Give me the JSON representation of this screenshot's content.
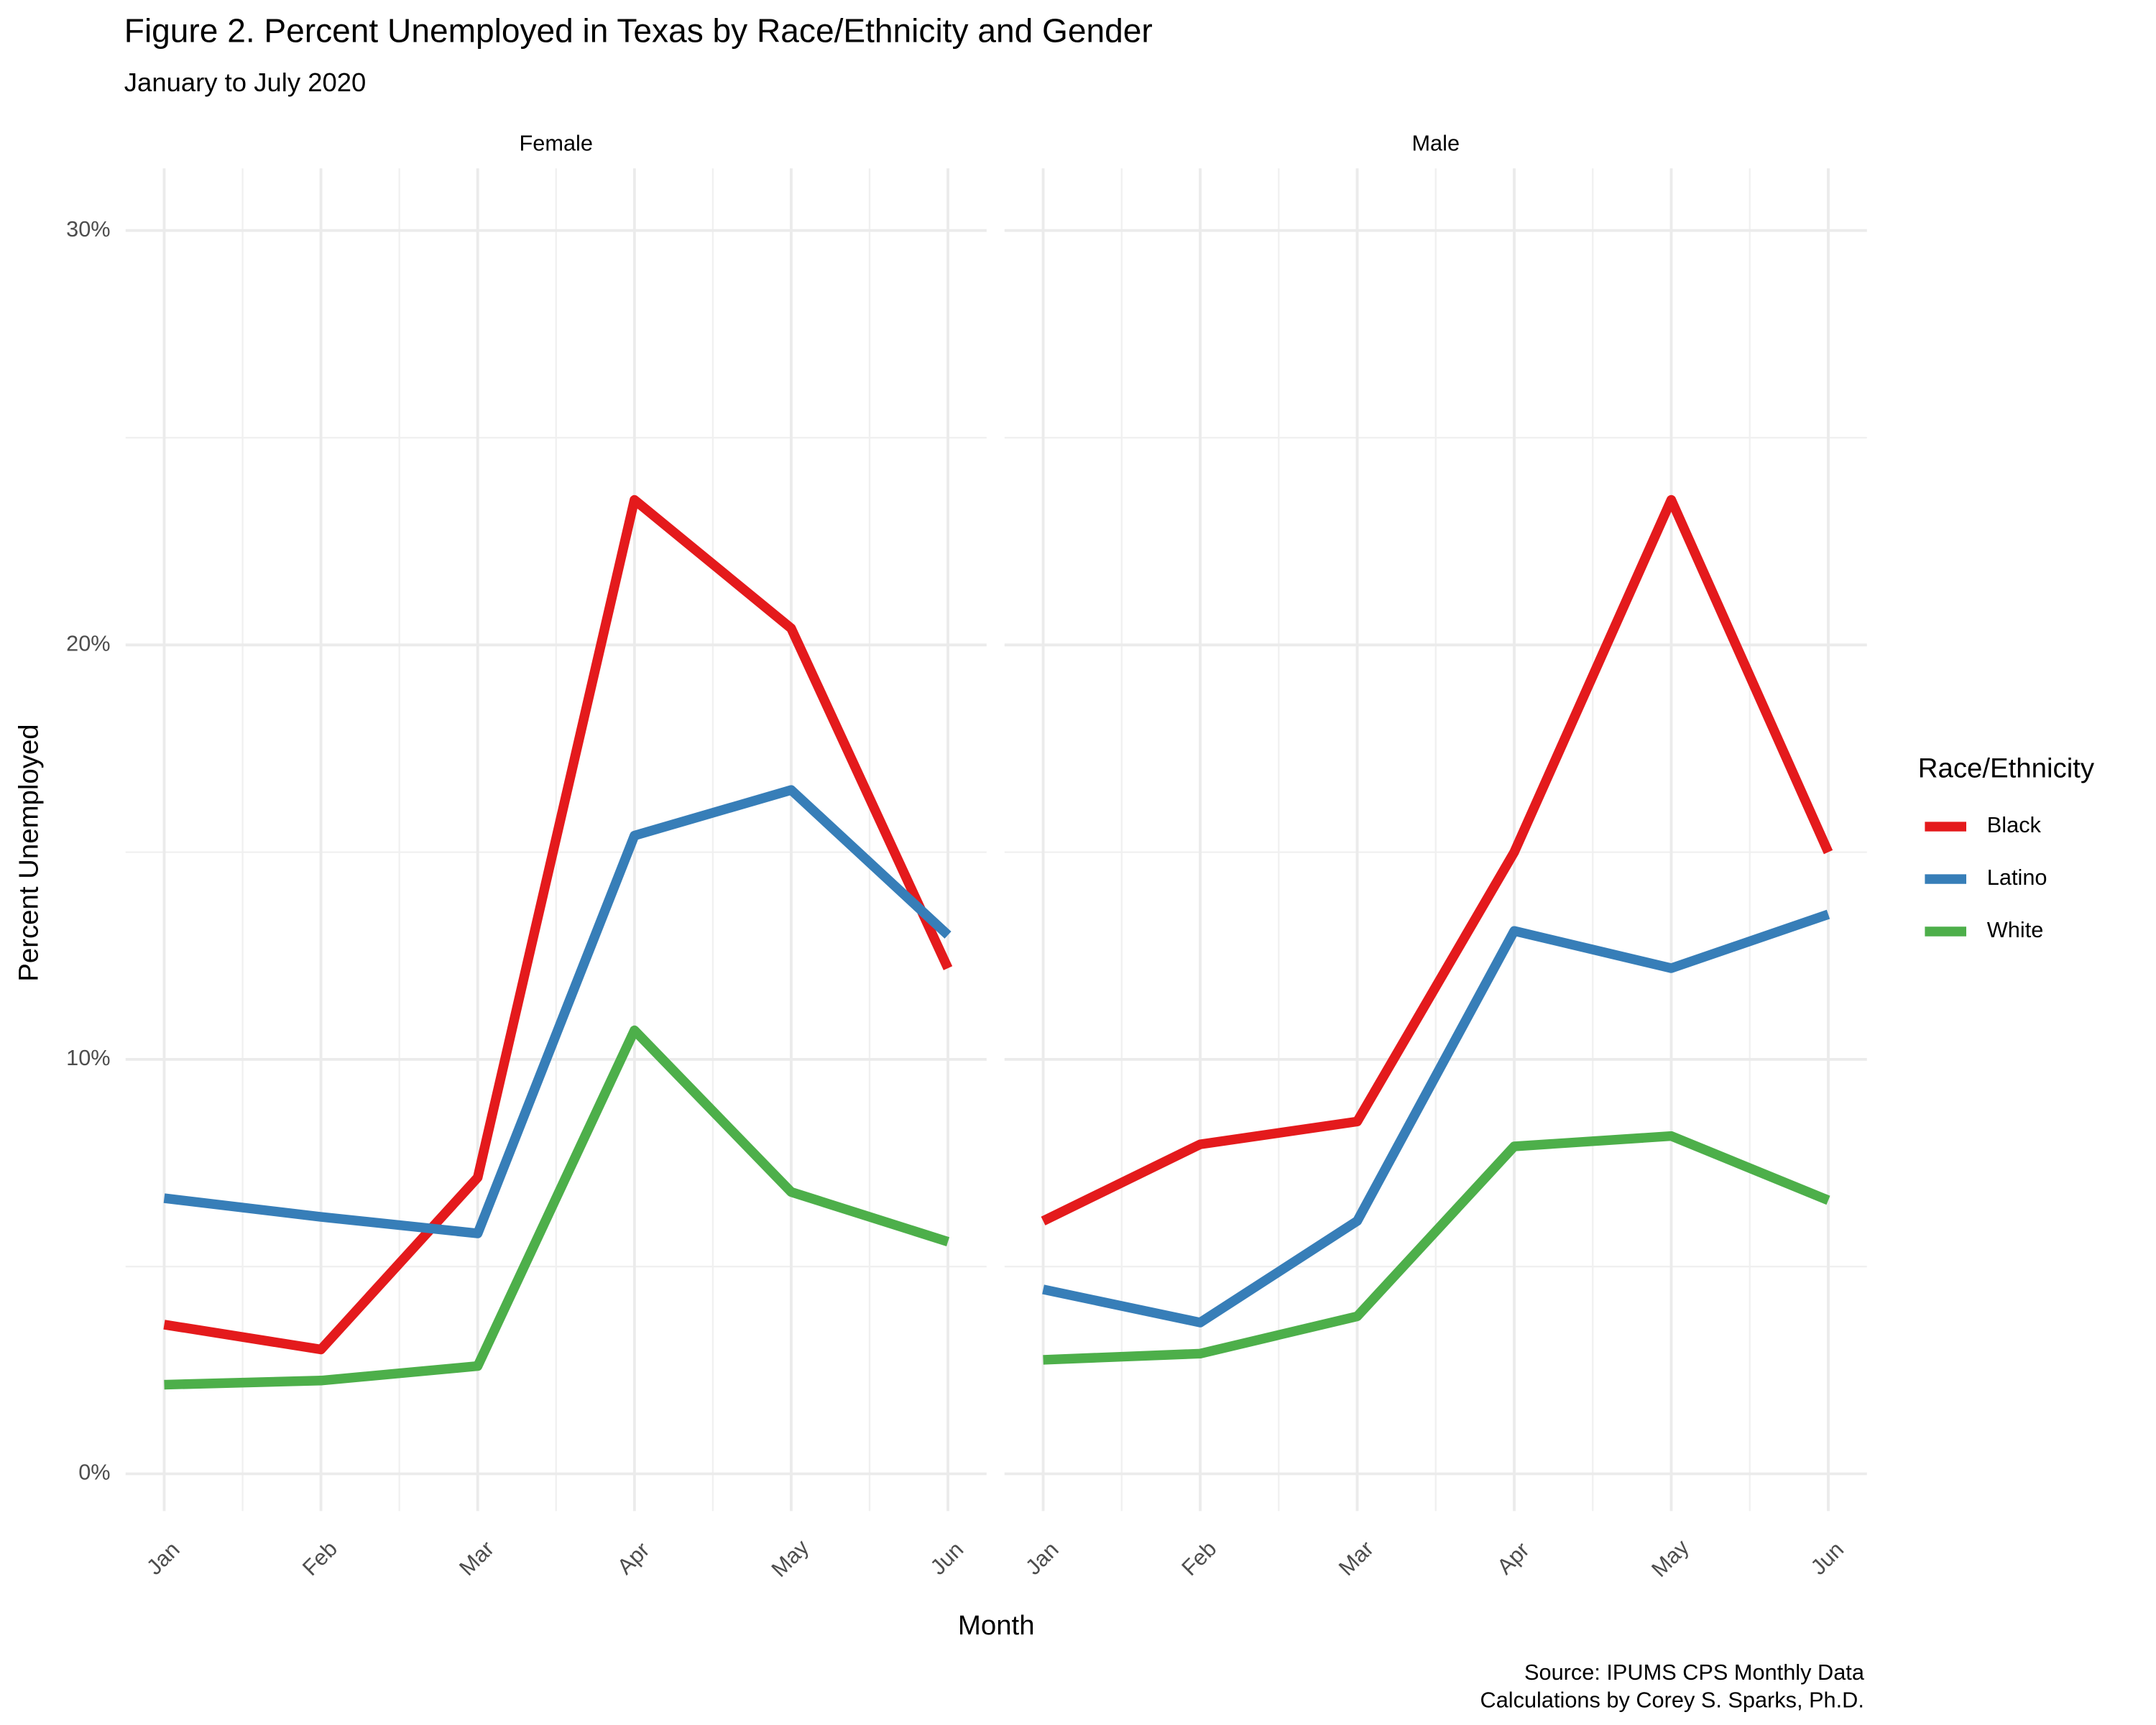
{
  "title": "Figure 2. Percent Unemployed in Texas by Race/Ethnicity and Gender",
  "subtitle": "January to July 2020",
  "x_label": "Month",
  "y_label": "Percent Unemployed",
  "legend_title": "Race/Ethnicity",
  "caption": [
    "Source: IPUMS CPS Monthly Data",
    "Calculations by Corey S. Sparks, Ph.D."
  ],
  "chart_data": [
    {
      "type": "line",
      "title": "Female",
      "categories": [
        "Jan",
        "Feb",
        "Mar",
        "Apr",
        "May",
        "Jun"
      ],
      "series": [
        {
          "name": "Black",
          "color": "#e41a1c",
          "values": [
            3.6,
            3.0,
            7.15,
            23.5,
            20.4,
            12.2
          ]
        },
        {
          "name": "Latino",
          "color": "#377eb8",
          "values": [
            6.65,
            6.2,
            5.8,
            15.4,
            16.5,
            13.0
          ]
        },
        {
          "name": "White",
          "color": "#4daf4a",
          "values": [
            2.15,
            2.25,
            2.6,
            10.7,
            6.8,
            5.6
          ]
        }
      ],
      "ylim": [
        -0.9,
        31.5
      ],
      "yticks": [
        {
          "value": 0,
          "label": "0%"
        },
        {
          "value": 10,
          "label": "10%"
        },
        {
          "value": 20,
          "label": "20%"
        },
        {
          "value": 30,
          "label": "30%"
        }
      ],
      "minor_yticks": [
        5,
        15,
        25
      ],
      "grid": true
    },
    {
      "type": "line",
      "title": "Male",
      "categories": [
        "Jan",
        "Feb",
        "Mar",
        "Apr",
        "May",
        "Jun"
      ],
      "series": [
        {
          "name": "Black",
          "color": "#e41a1c",
          "values": [
            6.1,
            7.95,
            8.5,
            15.0,
            23.5,
            15.0
          ]
        },
        {
          "name": "Latino",
          "color": "#377eb8",
          "values": [
            4.45,
            3.65,
            6.1,
            13.1,
            12.2,
            13.5
          ]
        },
        {
          "name": "White",
          "color": "#4daf4a",
          "values": [
            2.75,
            2.9,
            3.8,
            7.9,
            8.15,
            6.6
          ]
        }
      ],
      "ylim": [
        -0.9,
        31.5
      ],
      "yticks": [
        {
          "value": 0,
          "label": "0%"
        },
        {
          "value": 10,
          "label": "10%"
        },
        {
          "value": 20,
          "label": "20%"
        },
        {
          "value": 30,
          "label": "30%"
        }
      ],
      "minor_yticks": [
        5,
        15,
        25
      ],
      "grid": true
    }
  ]
}
